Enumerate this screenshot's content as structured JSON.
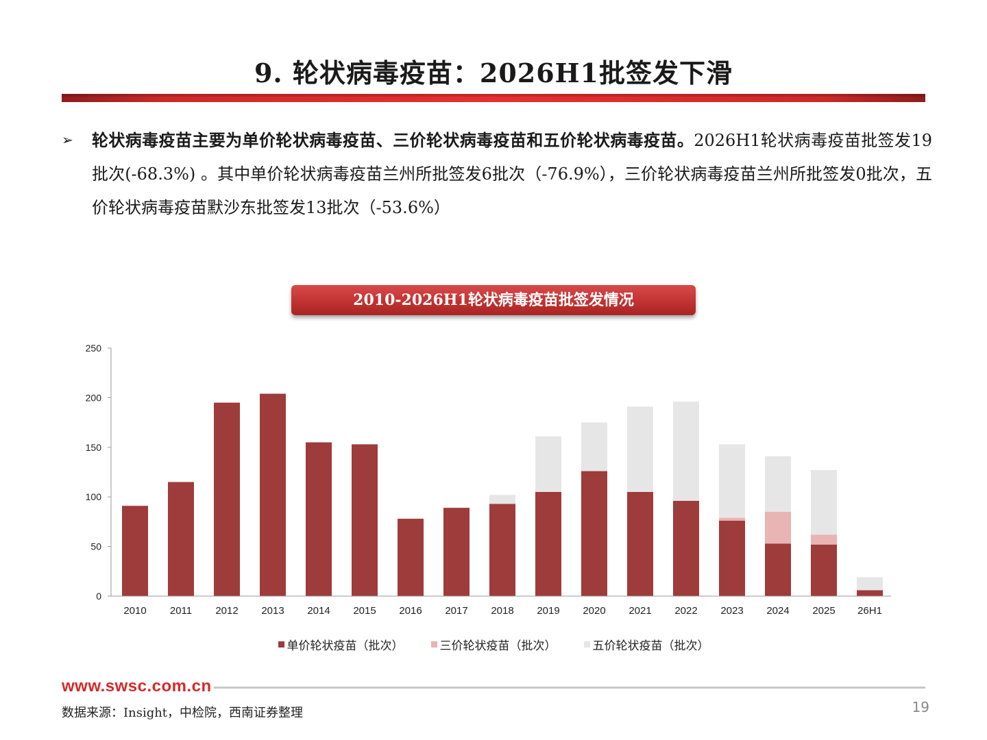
{
  "slide": {
    "title": "9. 轮状病毒疫苗：2026H1批签发下滑",
    "bullet_bold": "轮状病毒疫苗主要为单价轮状病毒疫苗、三价轮状病毒疫苗和五价轮状病毒疫苗。",
    "bullet_rest": "2026H1轮状病毒疫苗批签发19批次(-68.3%) 。其中单价轮状病毒疫苗兰州所批签发6批次（-76.9%），三价轮状病毒疫苗兰州所批签发0批次，五价轮状病毒疫苗默沙东批签发13批次（-53.6%）",
    "chart_title": "2010-2026H1轮状病毒疫苗批签发情况",
    "footer_url": "www.swsc.com.cn",
    "source": "数据来源：Insight，中检院，西南证券整理",
    "page_number": "19"
  },
  "chart_data": {
    "type": "bar",
    "stacked": true,
    "categories": [
      "2010",
      "2011",
      "2012",
      "2013",
      "2014",
      "2015",
      "2016",
      "2017",
      "2018",
      "2019",
      "2020",
      "2021",
      "2022",
      "2023",
      "2024",
      "2025",
      "26H1"
    ],
    "series": [
      {
        "name": "单价轮状疫苗（批次）",
        "color": "#9e3b3b",
        "values": [
          91,
          115,
          195,
          204,
          155,
          153,
          78,
          89,
          93,
          105,
          126,
          105,
          96,
          76,
          53,
          52,
          6
        ]
      },
      {
        "name": "三价轮状疫苗（批次）",
        "color": "#e8b4b4",
        "values": [
          0,
          0,
          0,
          0,
          0,
          0,
          0,
          0,
          0,
          0,
          0,
          0,
          0,
          3,
          32,
          10,
          0
        ]
      },
      {
        "name": "五价轮状疫苗（批次）",
        "color": "#e6e6e6",
        "values": [
          0,
          0,
          0,
          0,
          0,
          0,
          0,
          0,
          9,
          56,
          49,
          86,
          100,
          74,
          56,
          65,
          13
        ]
      }
    ],
    "ylim": [
      0,
      250
    ],
    "yticks": [
      0,
      50,
      100,
      150,
      200,
      250
    ],
    "legend_position": "bottom",
    "grid": false
  }
}
